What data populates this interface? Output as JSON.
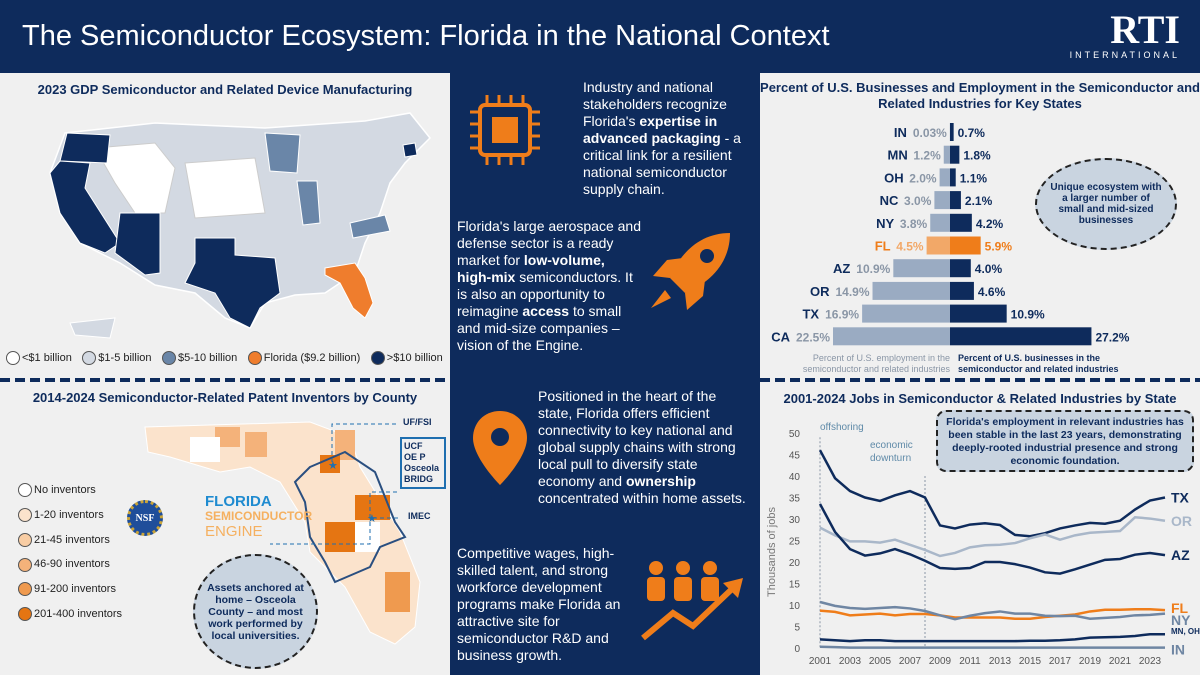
{
  "header": {
    "title": "The Semiconductor Ecosystem: Florida in the National Context",
    "logo_main": "RTI",
    "logo_sub": "INTERNATIONAL"
  },
  "gdp_map": {
    "title": "2023 GDP Semiconductor and Related Device Manufacturing",
    "legend": [
      {
        "label": "<$1 billion",
        "color": "#ffffff"
      },
      {
        "label": "$1-5 billion",
        "color": "#d3d9e2"
      },
      {
        "label": "$5-10 billion",
        "color": "#6a86a8"
      },
      {
        "label": "Florida ($9.2 billion)",
        "color": "#ef7d2d"
      },
      {
        "label": ">$10 billion",
        "color": "#0e2b5c"
      }
    ]
  },
  "patent_map": {
    "title": "2014-2024 Semiconductor-Related Patent Inventors by County",
    "legend": [
      {
        "label": "No inventors",
        "color": "#ffffff"
      },
      {
        "label": "1-20 inventors",
        "color": "#fbe3cc"
      },
      {
        "label": "21-45 inventors",
        "color": "#f8cda4"
      },
      {
        "label": "46-90 inventors",
        "color": "#f4b27a"
      },
      {
        "label": "91-200 inventors",
        "color": "#ef9a4f"
      },
      {
        "label": "201-400 inventors",
        "color": "#e57512"
      }
    ],
    "labels": {
      "uf": "UF/FSI",
      "ucf": [
        "UCF",
        "OE P",
        "Osceola",
        "BRIDG"
      ],
      "imec": "IMEC"
    },
    "engine": {
      "l1": "FLORIDA",
      "l2": "SEMICONDUCTOR",
      "l3": "ENGINE",
      "nsf": "NSF"
    },
    "bubble": "Assets anchored at home – Osceola County – and most work performed by local universities."
  },
  "middle": {
    "b1": {
      "pre": "Industry and national stakeholders recognize Florida's ",
      "bold": "expertise in advanced packaging",
      "post": " - a critical link for a resilient national semiconductor supply chain."
    },
    "b2": {
      "pre": "Florida's large aerospace and defense sector is a ready market for ",
      "bold": "low-volume, high-mix",
      "mid": " semiconductors. It is also an opportunity to reimagine ",
      "bold2": "access",
      "post": " to small and mid-size companies – vision of the Engine."
    },
    "b3": {
      "pre": "Positioned in the heart of the state, Florida offers efficient connectivity to key national and global supply chains with strong local pull to diversify state economy and ",
      "bold": "ownership",
      "post": " concentrated within home assets."
    },
    "b4": {
      "text": "Competitive wages, high-skilled talent, and strong workforce development programs make Florida an attractive site for semiconductor R&D and business growth."
    },
    "icons": [
      "chip-icon",
      "rocket-icon",
      "location-pin-icon",
      "workforce-growth-icon"
    ]
  },
  "chart_data": [
    {
      "type": "bar",
      "title": "Percent of U.S. Businesses and Employment in the Semiconductor and Related Industries for Key States",
      "categories": [
        "IN",
        "MN",
        "OH",
        "NC",
        "NY",
        "FL",
        "AZ",
        "OR",
        "TX",
        "CA"
      ],
      "series": [
        {
          "name": "Percent of U.S. employment in the semiconductor and related industries",
          "values": [
            0.03,
            1.2,
            2.0,
            3.0,
            3.8,
            4.5,
            10.9,
            14.9,
            16.9,
            22.5
          ],
          "labels": [
            "0.03%",
            "1.2%",
            "2.0%",
            "3.0%",
            "3.8%",
            "4.5%",
            "10.9%",
            "14.9%",
            "16.9%",
            "22.5%"
          ],
          "color": "#9aabc2",
          "highlight_color": "#f2a868"
        },
        {
          "name": "Percent of U.S. businesses in the semiconductor and related industries",
          "values": [
            0.7,
            1.8,
            1.1,
            2.1,
            4.2,
            5.9,
            4.0,
            4.6,
            10.9,
            27.2
          ],
          "labels": [
            "0.7%",
            "1.8%",
            "1.1%",
            "2.1%",
            "4.2%",
            "5.9%",
            "4.0%",
            "4.6%",
            "10.9%",
            "27.2%"
          ],
          "color": "#0e2b5c",
          "highlight_color": "#ef7d1a"
        }
      ],
      "highlight": "FL",
      "annotation": "Unique ecosystem with a larger number of small and mid-sized businesses"
    },
    {
      "type": "line",
      "title": "2001-2024 Jobs in Semiconductor & Related Industries by State",
      "ylabel": "Thousands of jobs",
      "ylim": [
        0,
        50
      ],
      "yticks": [
        0,
        5,
        10,
        15,
        20,
        25,
        30,
        35,
        40,
        45,
        50
      ],
      "xticks": [
        2001,
        2003,
        2005,
        2007,
        2009,
        2011,
        2013,
        2015,
        2017,
        2019,
        2021,
        2023
      ],
      "x": [
        2001,
        2002,
        2003,
        2004,
        2005,
        2006,
        2007,
        2008,
        2009,
        2010,
        2011,
        2012,
        2013,
        2014,
        2015,
        2016,
        2017,
        2018,
        2019,
        2020,
        2021,
        2022,
        2023,
        2024
      ],
      "series": [
        {
          "name": "TX",
          "color": "#0e2b5c",
          "values": [
            46,
            39.5,
            36.5,
            35,
            34.2,
            35.5,
            36.5,
            35,
            28.5,
            27.8,
            28.7,
            29,
            28.6,
            26.3,
            26,
            26.7,
            27.8,
            28.5,
            29.1,
            28.9,
            29.6,
            32.2,
            34.3,
            35
          ]
        },
        {
          "name": "OR",
          "color": "#a9b7c9",
          "values": [
            28,
            26.2,
            24.8,
            24.8,
            24.5,
            25.2,
            24,
            22.8,
            21.4,
            22.1,
            23.4,
            23.9,
            24,
            24.4,
            25.5,
            26.4,
            25.2,
            26.2,
            26.8,
            27,
            27.2,
            30.4,
            30.1,
            29.6
          ]
        },
        {
          "name": "AZ",
          "color": "#0e2b5c",
          "values": [
            33.5,
            27,
            23,
            21.5,
            22,
            23,
            21.8,
            20.3,
            18.6,
            18.4,
            18.6,
            20,
            20,
            19.5,
            18.7,
            17.6,
            17.3,
            18.3,
            19.4,
            20.5,
            20.7,
            21.7,
            22.1,
            21.6
          ]
        },
        {
          "name": "FL",
          "color": "#ef7d1a",
          "values": [
            8.7,
            8.4,
            7.6,
            7.8,
            8,
            7.6,
            7.9,
            7.9,
            7.6,
            7.1,
            7.1,
            7.1,
            7.1,
            6.8,
            6.8,
            7.2,
            7.5,
            7.8,
            8.5,
            8.9,
            8.9,
            9,
            9,
            8.8
          ]
        },
        {
          "name": "NY",
          "color": "#6f86a3",
          "values": [
            10.7,
            9.8,
            9.3,
            9.1,
            9.3,
            9.5,
            9.2,
            8.6,
            7.6,
            6.7,
            7.5,
            8.1,
            8.5,
            8,
            8,
            7.5,
            7.4,
            7.5,
            6.8,
            7,
            7.2,
            7.6,
            7.7,
            8
          ]
        },
        {
          "name": "MN, OH, & NC",
          "color": "#0e2b5c",
          "values": [
            2,
            1.8,
            1.6,
            1.8,
            1.8,
            1.6,
            1.6,
            1.6,
            1.6,
            1.6,
            1.6,
            1.6,
            1.6,
            1.6,
            1.7,
            1.7,
            1.8,
            2,
            2.4,
            2.5,
            2.6,
            2.8,
            3.2,
            3.2
          ]
        },
        {
          "name": "IN",
          "color": "#6f86a3",
          "values": [
            0.3,
            0.2,
            0.1,
            0.1,
            0.1,
            0.1,
            0.1,
            0.1,
            0.1,
            0.1,
            0.1,
            0.1,
            0.1,
            0.1,
            0.1,
            0.1,
            0.1,
            0.1,
            0.1,
            0.1,
            0.1,
            0.1,
            0.1,
            0.1
          ]
        }
      ],
      "events": [
        {
          "year": 2001,
          "label": "offshoring"
        },
        {
          "year": 2008,
          "label": "economic downturn"
        }
      ],
      "annotation": "Florida's employment in relevant industries has been stable in the last 23 years, demonstrating deeply-rooted industrial presence and strong economic foundation."
    }
  ]
}
